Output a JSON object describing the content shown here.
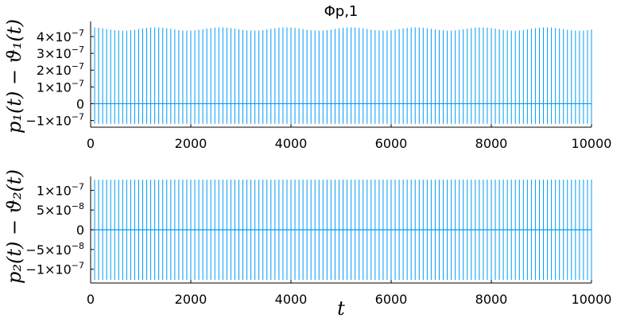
{
  "chart_data": [
    {
      "type": "line",
      "title": "Φp,1",
      "xlabel": "",
      "ylabel": "p₁(t) − ϑ₁(t)",
      "xlim": [
        0,
        10000
      ],
      "ylim": [
        -1.4e-07,
        4.9e-07
      ],
      "x_ticks": [
        0,
        2000,
        4000,
        6000,
        8000,
        10000
      ],
      "y_ticks": [
        {
          "value": -1e-07,
          "mantissa": "−1×10",
          "exp": "−7"
        },
        {
          "value": 0,
          "mantissa": "0",
          "exp": ""
        },
        {
          "value": 1e-07,
          "mantissa": "1×10",
          "exp": "−7"
        },
        {
          "value": 2e-07,
          "mantissa": "2×10",
          "exp": "−7"
        },
        {
          "value": 3e-07,
          "mantissa": "3×10",
          "exp": "−7"
        },
        {
          "value": 4e-07,
          "mantissa": "4×10",
          "exp": "−7"
        }
      ],
      "grid": false,
      "legend": "none",
      "color": "#009AFA",
      "series": [
        {
          "pattern": "periodic spikes",
          "period_approx": 80,
          "x_start": 0,
          "x_end": 10000,
          "baseline": 0,
          "upper_envelope": [
            4.55e-07,
            4.35e-07
          ],
          "lower_value": -1.2e-07
        }
      ]
    },
    {
      "type": "line",
      "title": "",
      "xlabel": "t",
      "ylabel": "p₂(t) − ϑ₂(t)",
      "xlim": [
        0,
        10000
      ],
      "ylim": [
        -1.35e-07,
        1.35e-07
      ],
      "x_ticks": [
        0,
        2000,
        4000,
        6000,
        8000,
        10000
      ],
      "y_ticks": [
        {
          "value": -1e-07,
          "mantissa": "−1×10",
          "exp": "−7"
        },
        {
          "value": -5e-08,
          "mantissa": "−5×10",
          "exp": "−8"
        },
        {
          "value": 0,
          "mantissa": "0",
          "exp": ""
        },
        {
          "value": 5e-08,
          "mantissa": "5×10",
          "exp": "−8"
        },
        {
          "value": 1e-07,
          "mantissa": "1×10",
          "exp": "−7"
        }
      ],
      "grid": false,
      "legend": "none",
      "color": "#009AFA",
      "series": [
        {
          "pattern": "periodic spikes",
          "period_approx": 80,
          "x_start": 0,
          "x_end": 10000,
          "baseline": 0,
          "upper_value": 1.27e-07,
          "lower_value": -1.27e-07
        }
      ]
    }
  ]
}
